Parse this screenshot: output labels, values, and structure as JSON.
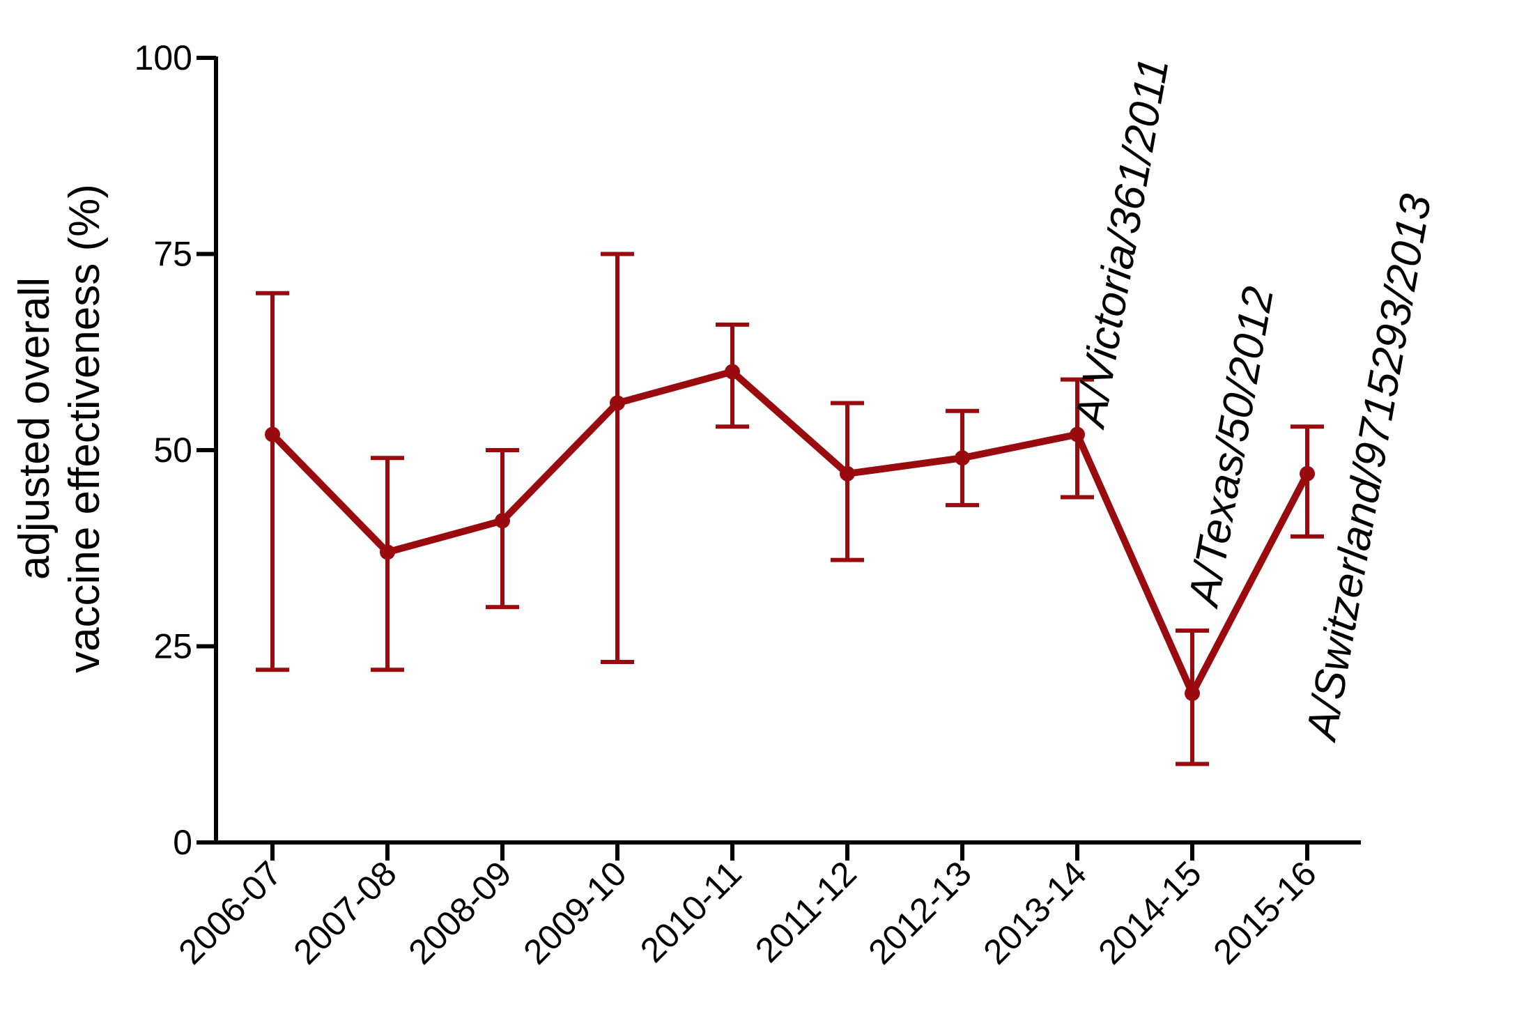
{
  "chart_data": {
    "type": "line",
    "title": "",
    "xlabel": "",
    "ylabel_lines": [
      "adjusted overall",
      "vaccine effectiveness (%)"
    ],
    "categories": [
      "2006-07",
      "2007-08",
      "2008-09",
      "2009-10",
      "2010-11",
      "2011-12",
      "2012-13",
      "2013-14",
      "2014-15",
      "2015-16"
    ],
    "series": [
      {
        "values": [
          52,
          37,
          41,
          56,
          60,
          47,
          49,
          52,
          19,
          47
        ],
        "lower": [
          22,
          22,
          30,
          23,
          53,
          36,
          43,
          44,
          10,
          39
        ],
        "upper": [
          70,
          49,
          50,
          75,
          66,
          56,
          55,
          59,
          27,
          53
        ]
      }
    ],
    "ylim": [
      0,
      100
    ],
    "yticks": [
      0,
      25,
      50,
      75,
      100
    ],
    "grid": false,
    "legend": "none",
    "annotations": [
      {
        "text": "A/Victoria/361/2011",
        "category": "2013-14"
      },
      {
        "text": "A/Texas/50/2012",
        "category": "2014-15"
      },
      {
        "text": "A/Switzerland/9715293/2013",
        "category": "2015-16"
      }
    ],
    "colors": {
      "series": "#990b0f",
      "axis": "#000000"
    }
  }
}
